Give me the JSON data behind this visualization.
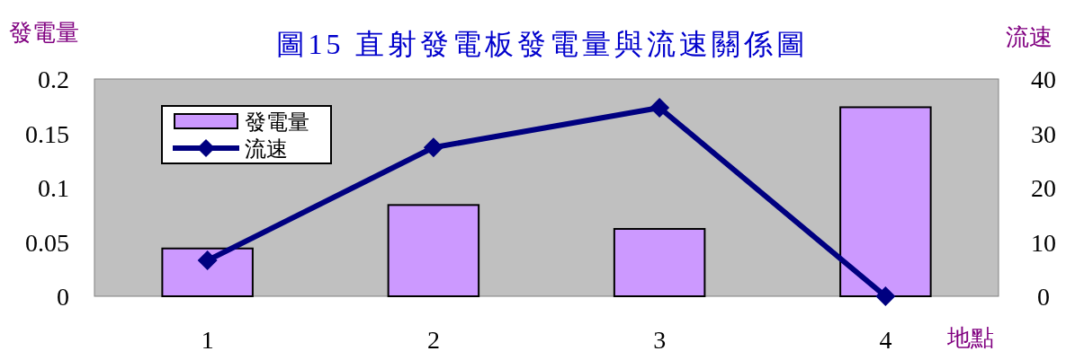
{
  "chart_data": {
    "type": "bar",
    "title": "圖15  直射發電板發電量與流速關係圖",
    "ylabel": "發電量",
    "y2label": "流速",
    "xlabel": "地點",
    "categories": [
      "1",
      "2",
      "3",
      "4"
    ],
    "series": [
      {
        "name": "發電量",
        "color": "#cc99ff",
        "values": [
          0.044,
          0.084,
          0.062,
          0.174
        ]
      },
      {
        "name": "流速",
        "type": "line",
        "axis": "y2",
        "color": "#000080",
        "marker": "diamond",
        "values": [
          6.6,
          27.4,
          34.7,
          0
        ]
      }
    ],
    "ylim": [
      0,
      0.2
    ],
    "yticks": [
      0,
      0.05,
      0.1,
      0.15,
      0.2
    ],
    "y2lim": [
      0,
      40
    ],
    "y2ticks": [
      0,
      10,
      20,
      30,
      40
    ],
    "grid": false,
    "legend": "top left"
  }
}
